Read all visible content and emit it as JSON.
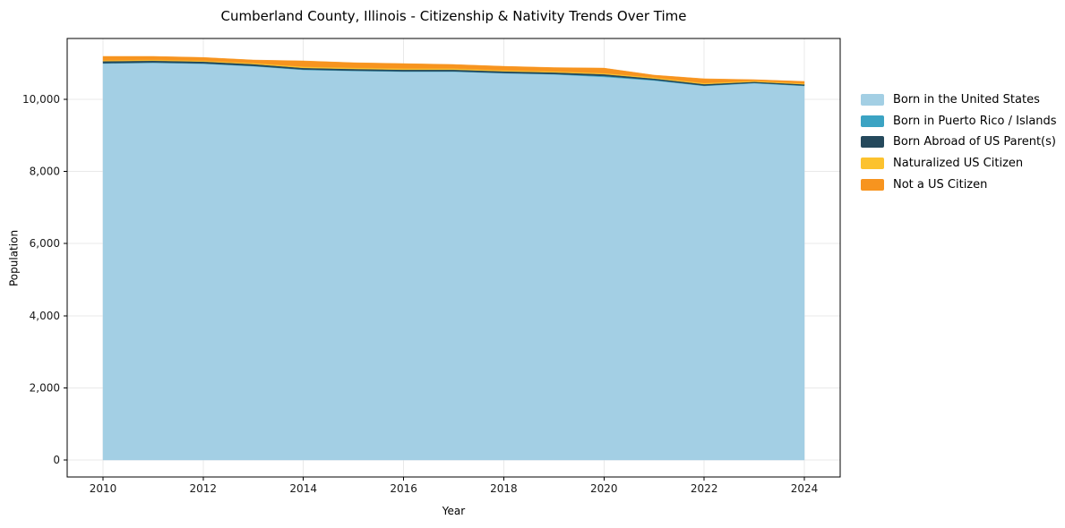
{
  "chart_data": {
    "type": "area",
    "stacked": true,
    "title": "Cumberland County, Illinois - Citizenship & Nativity Trends Over Time",
    "xlabel": "Year",
    "ylabel": "Population",
    "x": [
      2010,
      2011,
      2012,
      2013,
      2014,
      2015,
      2016,
      2017,
      2018,
      2019,
      2020,
      2021,
      2022,
      2023,
      2024
    ],
    "series": [
      {
        "key": "born-us",
        "name": "Born in the United States",
        "color": "#a3cfe4",
        "values": [
          10990,
          11010,
          10985,
          10915,
          10815,
          10785,
          10765,
          10765,
          10720,
          10690,
          10620,
          10520,
          10370,
          10445,
          10370
        ]
      },
      {
        "key": "puerto-rico-islands",
        "name": "Born in Puerto Rico / Islands",
        "color": "#3ba3c3",
        "values": [
          10,
          10,
          10,
          10,
          10,
          10,
          10,
          10,
          10,
          10,
          25,
          15,
          10,
          10,
          10
        ]
      },
      {
        "key": "born-abroad",
        "name": "Born Abroad of US Parent(s)",
        "color": "#25495c",
        "values": [
          55,
          50,
          50,
          50,
          45,
          45,
          45,
          45,
          45,
          45,
          50,
          40,
          40,
          30,
          35
        ]
      },
      {
        "key": "naturalized",
        "name": "Naturalized US Citizen",
        "color": "#fcc22e",
        "values": [
          25,
          25,
          25,
          30,
          35,
          35,
          35,
          35,
          30,
          30,
          30,
          30,
          30,
          25,
          25
        ]
      },
      {
        "key": "not-citizen",
        "name": "Not a US Citizen",
        "color": "#f7941f",
        "values": [
          110,
          95,
          90,
          85,
          160,
          140,
          135,
          110,
          110,
          105,
          140,
          65,
          120,
          35,
          55
        ]
      }
    ],
    "xticks": {
      "values": [
        2010,
        2012,
        2014,
        2016,
        2018,
        2020,
        2022,
        2024
      ],
      "labels": [
        "2010",
        "2012",
        "2014",
        "2016",
        "2018",
        "2020",
        "2022",
        "2024"
      ]
    },
    "yticks": {
      "values": [
        0,
        2000,
        4000,
        6000,
        8000,
        10000
      ],
      "labels": [
        "0",
        "2,000",
        "4,000",
        "6,000",
        "8,000",
        "10,000"
      ]
    },
    "xlim": [
      2009.285,
      2024.715
    ],
    "ylim": [
      -471,
      11685
    ],
    "grid": true,
    "legend_position": "outside-right-top",
    "grid_color": "#e9e9e9",
    "spine_color": "#000000",
    "tick_color": "#000000",
    "text_color": "#1a1a1a",
    "background": "#ffffff"
  }
}
